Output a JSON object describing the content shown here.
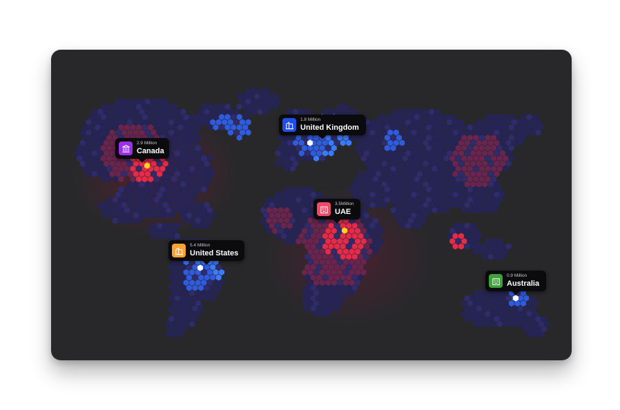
{
  "map": {
    "background": "#28282b",
    "hex_colors": {
      "base": "#252459",
      "dim": "#2e2c6e",
      "blue": "#2f5be0",
      "blue_light": "#3b7bff",
      "red": "#e32b4b",
      "red_dim": "#6a2450",
      "highlight_white": "#ffffff",
      "highlight_yellow": "#ffd21e"
    }
  },
  "markers": [
    {
      "id": "canada",
      "value": "2.9 Million",
      "name": "Canada",
      "icon": "bank-icon",
      "color": "#9b30e8"
    },
    {
      "id": "uk",
      "value": "1.8 Million",
      "name": "United Kingdom",
      "icon": "building-icon",
      "color": "#1f4fe6"
    },
    {
      "id": "uae",
      "value": "3.5Million",
      "name": "UAE",
      "icon": "office-icon",
      "color": "#ee4a6a"
    },
    {
      "id": "us",
      "value": "5.4 Million",
      "name": "United States",
      "icon": "building-icon",
      "color": "#f7a233"
    },
    {
      "id": "australia",
      "value": "0.9 Million",
      "name": "Australia",
      "icon": "office-icon",
      "color": "#3fa03b"
    }
  ]
}
